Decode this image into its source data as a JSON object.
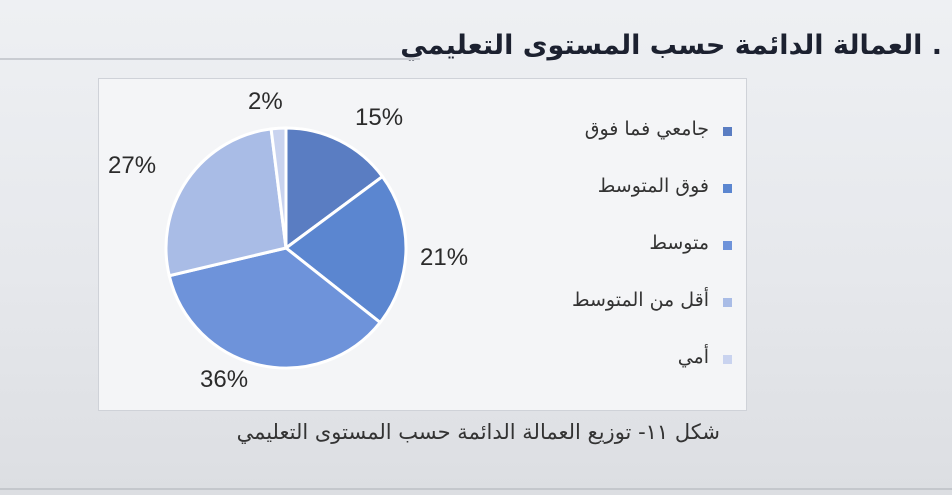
{
  "heading": ". العمالة الدائمة حسب المستوى التعليمي",
  "caption": "شكل ١١- توزيع العمالة الدائمة حسب المستوى التعليمي",
  "chart_data": {
    "type": "pie",
    "labels": [
      "جامعي فما فوق",
      "فوق المتوسط",
      "متوسط",
      "أقل من المتوسط",
      "أمي"
    ],
    "values": [
      15,
      21,
      36,
      27,
      2
    ],
    "value_labels": [
      "15%",
      "21%",
      "36%",
      "27%",
      "2%"
    ],
    "colors": [
      "#5a7dc2",
      "#5b86d0",
      "#6e93da",
      "#a9bce6",
      "#c9d3ef"
    ],
    "legend_position": "right",
    "start_angle_deg": 0,
    "direction": "clockwise"
  }
}
